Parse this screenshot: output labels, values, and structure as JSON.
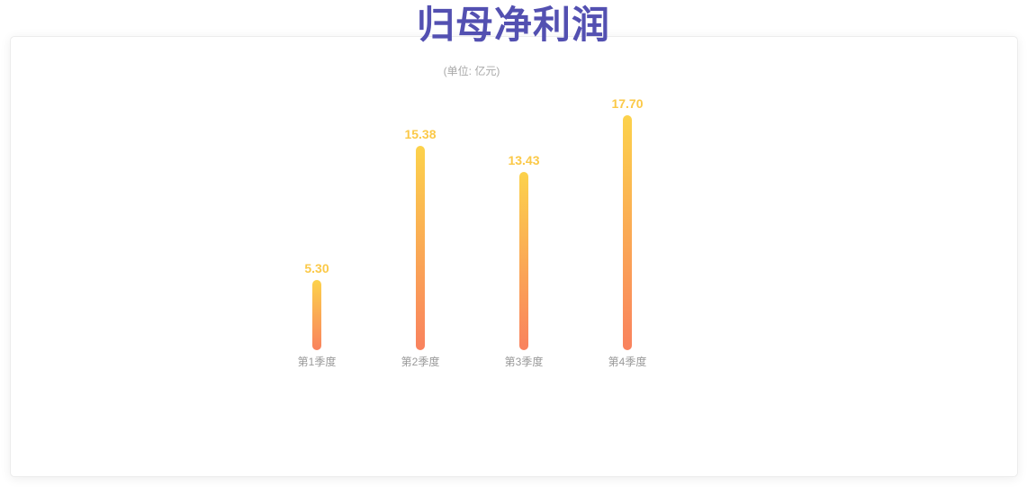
{
  "theme": {
    "title_color": "#5350b1",
    "subtitle_color": "#a9a9a9",
    "value_label_color": "#fbc948",
    "axis_label_color": "#999999",
    "bar_gradient_top": "#fcd24b",
    "bar_gradient_bottom": "#f9825e",
    "card_background": "#ffffff",
    "card_border_color": "#ececec"
  },
  "chart_data": {
    "type": "bar",
    "title": "归母净利润",
    "subtitle": "(单位: 亿元)",
    "categories": [
      "第1季度",
      "第2季度",
      "第3季度",
      "第4季度"
    ],
    "values": [
      5.3,
      15.38,
      13.43,
      17.7
    ],
    "value_labels": [
      "5.30",
      "15.38",
      "13.43",
      "17.70"
    ],
    "xlabel": "",
    "ylabel": "亿元",
    "ylim": [
      0,
      20
    ],
    "grid": false,
    "legend": false,
    "axis_line": false,
    "value_labels_position": "above-bar"
  }
}
